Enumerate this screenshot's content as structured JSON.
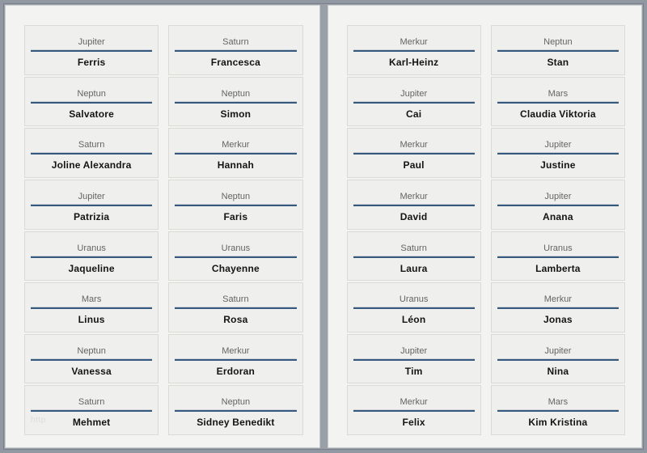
{
  "document": {
    "watermark": "http"
  },
  "theme": {
    "frame_color": "#9198a1",
    "desk_gap_color": "#9aa0a8",
    "page_bg": "#f3f3f1",
    "cell_bg": "#efefed",
    "cell_border": "#dadad7",
    "accent_line_color": "#35587f",
    "planet_text_color": "#646464",
    "name_text_color": "#141414"
  },
  "pages": [
    {
      "labels": [
        {
          "planet": "Jupiter",
          "person": "Ferris"
        },
        {
          "planet": "Saturn",
          "person": "Francesca"
        },
        {
          "planet": "Neptun",
          "person": "Salvatore"
        },
        {
          "planet": "Neptun",
          "person": "Simon"
        },
        {
          "planet": "Saturn",
          "person": "Joline Alexandra"
        },
        {
          "planet": "Merkur",
          "person": "Hannah"
        },
        {
          "planet": "Jupiter",
          "person": "Patrizia"
        },
        {
          "planet": "Neptun",
          "person": "Faris"
        },
        {
          "planet": "Uranus",
          "person": "Jaqueline"
        },
        {
          "planet": "Uranus",
          "person": "Chayenne"
        },
        {
          "planet": "Mars",
          "person": "Linus"
        },
        {
          "planet": "Saturn",
          "person": "Rosa"
        },
        {
          "planet": "Neptun",
          "person": "Vanessa"
        },
        {
          "planet": "Merkur",
          "person": "Erdoran"
        },
        {
          "planet": "Saturn",
          "person": "Mehmet"
        },
        {
          "planet": "Neptun",
          "person": "Sidney Benedikt"
        }
      ]
    },
    {
      "labels": [
        {
          "planet": "Merkur",
          "person": "Karl-Heinz"
        },
        {
          "planet": "Neptun",
          "person": "Stan"
        },
        {
          "planet": "Jupiter",
          "person": "Cai"
        },
        {
          "planet": "Mars",
          "person": "Claudia Viktoria"
        },
        {
          "planet": "Merkur",
          "person": "Paul"
        },
        {
          "planet": "Jupiter",
          "person": "Justine"
        },
        {
          "planet": "Merkur",
          "person": "David"
        },
        {
          "planet": "Jupiter",
          "person": "Anana"
        },
        {
          "planet": "Saturn",
          "person": "Laura"
        },
        {
          "planet": "Uranus",
          "person": "Lamberta"
        },
        {
          "planet": "Uranus",
          "person": "Léon"
        },
        {
          "planet": "Merkur",
          "person": "Jonas"
        },
        {
          "planet": "Jupiter",
          "person": "Tim"
        },
        {
          "planet": "Jupiter",
          "person": "Nina"
        },
        {
          "planet": "Merkur",
          "person": "Felix"
        },
        {
          "planet": "Mars",
          "person": "Kim Kristina"
        }
      ]
    }
  ]
}
